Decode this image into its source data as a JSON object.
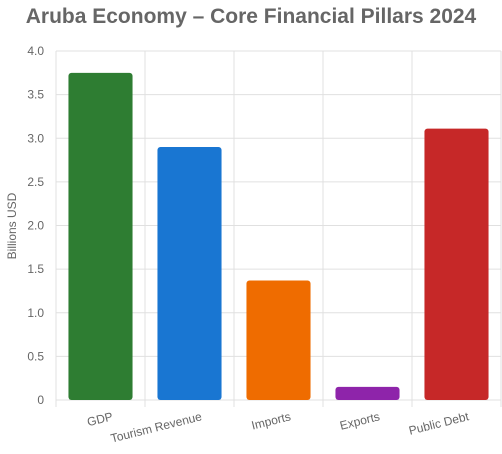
{
  "chart_data": {
    "type": "bar",
    "title": "Aruba Economy – Core Financial Pillars 2024",
    "xlabel": "",
    "ylabel": "Billions USD",
    "categories": [
      "GDP",
      "Tourism Revenue",
      "Imports",
      "Exports",
      "Public Debt"
    ],
    "values": [
      3.75,
      2.9,
      1.37,
      0.15,
      3.11
    ],
    "colors": [
      "#2e7d32",
      "#1976d2",
      "#ef6c00",
      "#8e24aa",
      "#c62828"
    ],
    "ylim": [
      0,
      4.0
    ],
    "yticks": [
      "0",
      "0.5",
      "1.0",
      "1.5",
      "2.0",
      "2.5",
      "3.0",
      "3.5",
      "4.0"
    ],
    "grid": true,
    "legend": "none"
  }
}
